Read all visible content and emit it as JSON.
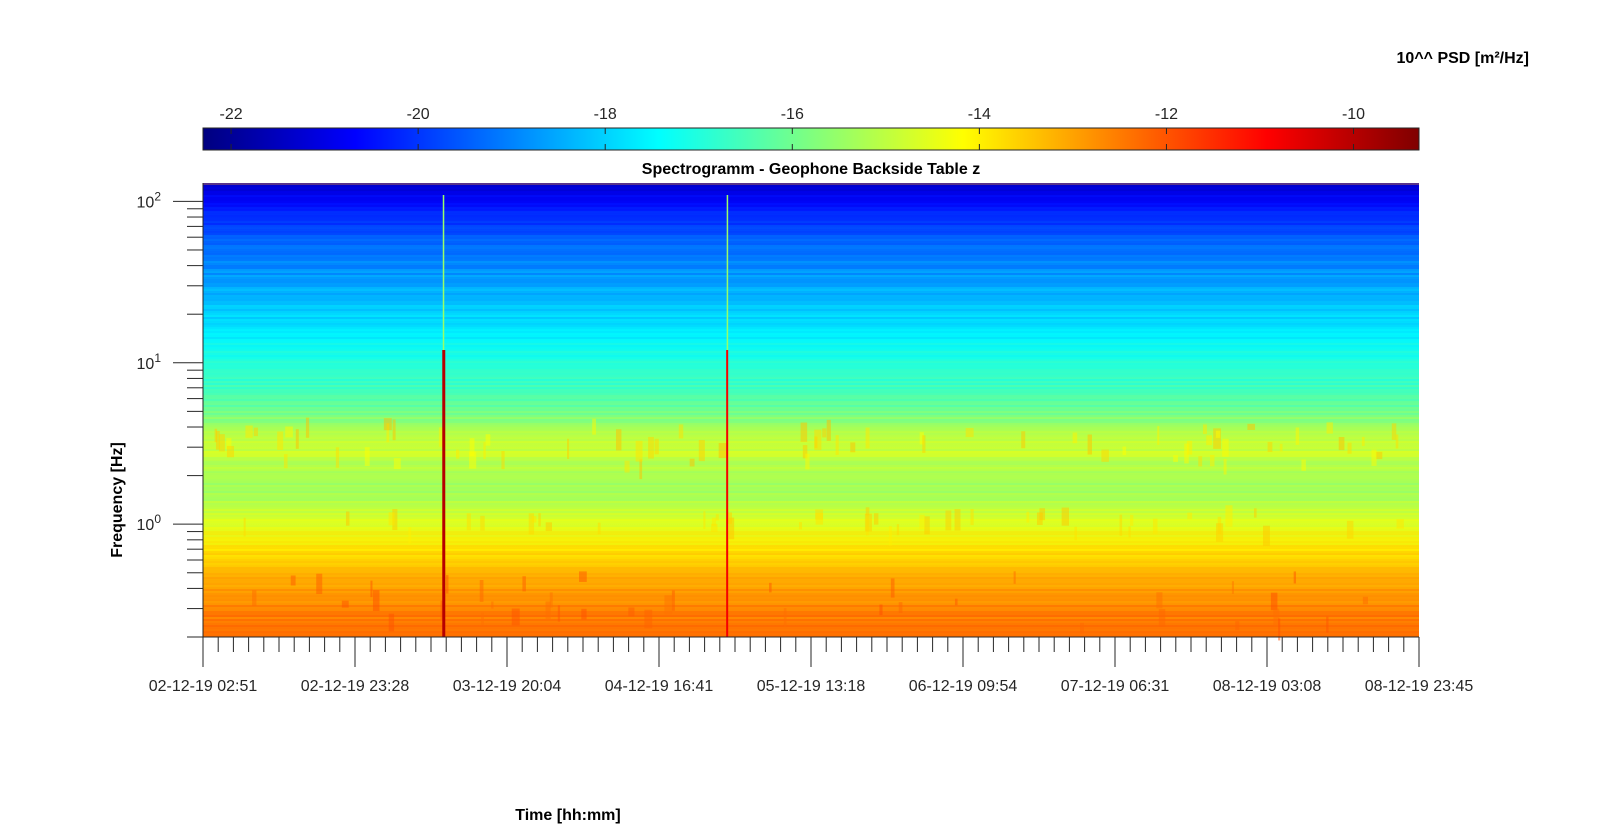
{
  "chart_data": {
    "type": "heatmap",
    "title": "Spectrogramm - Geophone Backside Table z",
    "xlabel": "Time [hh:mm]",
    "ylabel": "Frequency [Hz]",
    "x_ticks": [
      "02-12-19 02:51",
      "02-12-19 23:28",
      "03-12-19 20:04",
      "04-12-19 16:41",
      "05-12-19 13:18",
      "06-12-19 09:54",
      "07-12-19 06:31",
      "08-12-19 03:08",
      "08-12-19 23:45"
    ],
    "y_scale": "log",
    "y_range": [
      0.2,
      130
    ],
    "y_ticks": [
      {
        "value": 1,
        "base": "10",
        "exponent": "0"
      },
      {
        "value": 10,
        "base": "10",
        "exponent": "1"
      },
      {
        "value": 100,
        "base": "10",
        "exponent": "2"
      }
    ],
    "colorbar": {
      "label": "10^^ PSD [m²/Hz]",
      "colormap": "jet",
      "range": [
        -22.3,
        -9.3
      ],
      "ticks": [
        -22,
        -20,
        -18,
        -16,
        -14,
        -12,
        -10
      ],
      "placement": "top"
    },
    "intensity_profile_by_frequency": {
      "frequency_hz": [
        130,
        100,
        60,
        30,
        20,
        15,
        10,
        6,
        4,
        3,
        2,
        1.5,
        1,
        0.7,
        0.5,
        0.3,
        0.2
      ],
      "log10_psd": [
        -21.2,
        -20.6,
        -19.5,
        -18.5,
        -18.0,
        -17.6,
        -17.0,
        -16.4,
        -15.4,
        -14.8,
        -15.3,
        -15.3,
        -14.6,
        -13.8,
        -13.3,
        -12.6,
        -12.3
      ]
    },
    "transient_events": [
      "03-12-19 11:30",
      "05-12-19 02:00"
    ]
  },
  "colors": {
    "jet": [
      "#00007f",
      "#0000ff",
      "#007fff",
      "#00ffff",
      "#7fff7f",
      "#ffff00",
      "#ff7f00",
      "#ff0000",
      "#7f0000"
    ]
  }
}
